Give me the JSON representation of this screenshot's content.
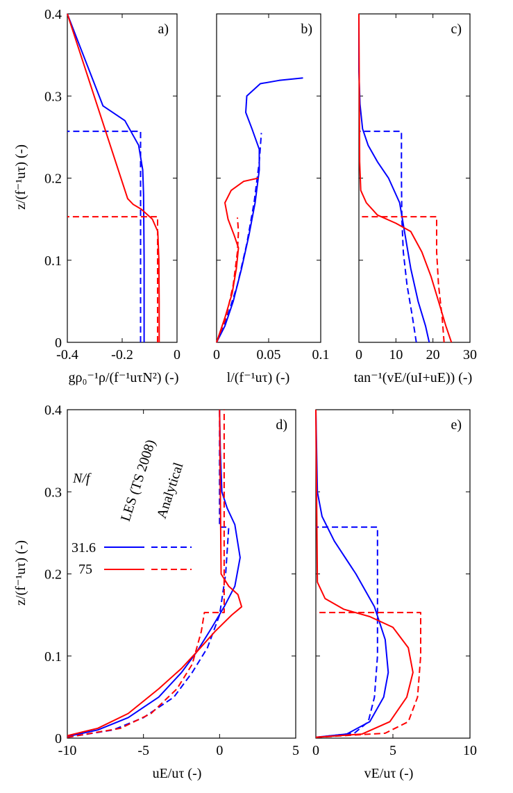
{
  "colors": {
    "les_31_6": "#0000ff",
    "les_75": "#ff0000",
    "axis": "#000000"
  },
  "y_label": "z/(f⁻¹uτ) (-)",
  "legend": {
    "header": "N/f",
    "col_les": "LES (TS 2008)",
    "col_analytical": "Analytical",
    "rows": [
      {
        "label": "31.6",
        "color": "#0000ff"
      },
      {
        "label": "75",
        "color": "#ff0000"
      }
    ]
  },
  "chart_data": [
    {
      "id": "a",
      "panel_label": "a)",
      "type": "line",
      "xlabel": "gρ₀⁻¹ρ/(f⁻¹uτN²) (-)",
      "ylabel": "z/(f⁻¹uτ) (-)",
      "xlim": [
        -0.4,
        0
      ],
      "ylim": [
        0,
        0.4
      ],
      "xticks": [
        -0.4,
        -0.2,
        0
      ],
      "xtick_labels": [
        "-0.4",
        "-0.2",
        "0"
      ],
      "yticks": [
        0,
        0.1,
        0.2,
        0.3,
        0.4
      ],
      "ytick_labels": [
        "0",
        "0.1",
        "0.2",
        "0.3",
        "0.4"
      ],
      "series": [
        {
          "name": "31.6 LES",
          "color": "#0000ff",
          "dash": false,
          "points": [
            [
              -0.12,
              0
            ],
            [
              -0.12,
              0.05
            ],
            [
              -0.12,
              0.1
            ],
            [
              -0.121,
              0.14
            ],
            [
              -0.122,
              0.18
            ],
            [
              -0.125,
              0.21
            ],
            [
              -0.14,
              0.24
            ],
            [
              -0.19,
              0.27
            ],
            [
              -0.27,
              0.288
            ],
            [
              -0.4,
              0.4
            ]
          ]
        },
        {
          "name": "31.6 Analytical",
          "color": "#0000ff",
          "dash": true,
          "points": [
            [
              -0.133,
              0
            ],
            [
              -0.133,
              0.257
            ],
            [
              -0.4,
              0.257
            ]
          ]
        },
        {
          "name": "75 LES",
          "color": "#ff0000",
          "dash": false,
          "points": [
            [
              -0.065,
              0
            ],
            [
              -0.065,
              0.05
            ],
            [
              -0.066,
              0.1
            ],
            [
              -0.07,
              0.135
            ],
            [
              -0.09,
              0.15
            ],
            [
              -0.13,
              0.162
            ],
            [
              -0.16,
              0.168
            ],
            [
              -0.18,
              0.175
            ],
            [
              -0.4,
              0.4
            ]
          ]
        },
        {
          "name": "75 Analytical",
          "color": "#ff0000",
          "dash": true,
          "points": [
            [
              -0.071,
              0
            ],
            [
              -0.071,
              0.153
            ],
            [
              -0.4,
              0.153
            ]
          ]
        }
      ]
    },
    {
      "id": "b",
      "panel_label": "b)",
      "type": "line",
      "xlabel": "l/(f⁻¹uτ) (-)",
      "ylabel": "",
      "xlim": [
        0,
        0.1
      ],
      "ylim": [
        0,
        0.4
      ],
      "xticks": [
        0,
        0.05,
        0.1
      ],
      "xtick_labels": [
        "0",
        "0.05",
        "0.1"
      ],
      "yticks": [
        0,
        0.1,
        0.2,
        0.3,
        0.4
      ],
      "ytick_labels": [],
      "series": [
        {
          "name": "31.6 LES",
          "color": "#0000ff",
          "dash": false,
          "points": [
            [
              0,
              0
            ],
            [
              0.008,
              0.02
            ],
            [
              0.016,
              0.05
            ],
            [
              0.024,
              0.09
            ],
            [
              0.031,
              0.13
            ],
            [
              0.037,
              0.17
            ],
            [
              0.041,
              0.21
            ],
            [
              0.041,
              0.235
            ],
            [
              0.034,
              0.26
            ],
            [
              0.028,
              0.28
            ],
            [
              0.029,
              0.3
            ],
            [
              0.042,
              0.315
            ],
            [
              0.06,
              0.319
            ],
            [
              0.083,
              0.322
            ]
          ]
        },
        {
          "name": "31.6 Analytical",
          "color": "#0000ff",
          "dash": true,
          "points": [
            [
              0,
              0
            ],
            [
              0.01,
              0.03
            ],
            [
              0.02,
              0.07
            ],
            [
              0.029,
              0.12
            ],
            [
              0.036,
              0.17
            ],
            [
              0.041,
              0.22
            ],
            [
              0.043,
              0.255
            ]
          ]
        },
        {
          "name": "75 LES",
          "color": "#ff0000",
          "dash": false,
          "points": [
            [
              0,
              0
            ],
            [
              0.008,
              0.03
            ],
            [
              0.015,
              0.06
            ],
            [
              0.019,
              0.09
            ],
            [
              0.021,
              0.115
            ],
            [
              0.017,
              0.13
            ],
            [
              0.011,
              0.15
            ],
            [
              0.008,
              0.17
            ],
            [
              0.014,
              0.185
            ],
            [
              0.026,
              0.196
            ],
            [
              0.04,
              0.2
            ]
          ]
        },
        {
          "name": "75 Analytical",
          "color": "#ff0000",
          "dash": true,
          "points": [
            [
              0,
              0
            ],
            [
              0.009,
              0.03
            ],
            [
              0.016,
              0.07
            ],
            [
              0.02,
              0.11
            ],
            [
              0.021,
              0.135
            ],
            [
              0.02,
              0.152
            ]
          ]
        }
      ]
    },
    {
      "id": "c",
      "panel_label": "c)",
      "type": "line",
      "xlabel": "tan⁻¹(vE/(uI+uE)) (-)",
      "ylabel": "",
      "xlim": [
        0,
        30
      ],
      "ylim": [
        0,
        0.4
      ],
      "xticks": [
        0,
        10,
        20,
        30
      ],
      "xtick_labels": [
        "0",
        "10",
        "20",
        "30"
      ],
      "yticks": [
        0,
        0.1,
        0.2,
        0.3,
        0.4
      ],
      "ytick_labels": [],
      "series": [
        {
          "name": "31.6 LES",
          "color": "#0000ff",
          "dash": false,
          "points": [
            [
              19,
              0
            ],
            [
              18,
              0.02
            ],
            [
              16,
              0.05
            ],
            [
              14,
              0.09
            ],
            [
              12.5,
              0.13
            ],
            [
              11,
              0.17
            ],
            [
              8,
              0.2
            ],
            [
              5,
              0.22
            ],
            [
              2.5,
              0.24
            ],
            [
              1,
              0.26
            ],
            [
              0.3,
              0.29
            ],
            [
              0,
              0.33
            ],
            [
              0,
              0.4
            ]
          ]
        },
        {
          "name": "31.6 Analytical",
          "color": "#0000ff",
          "dash": true,
          "points": [
            [
              15.5,
              0
            ],
            [
              14.5,
              0.03
            ],
            [
              13,
              0.07
            ],
            [
              12,
              0.11
            ],
            [
              11.6,
              0.15
            ],
            [
              11.5,
              0.2
            ],
            [
              11.5,
              0.257
            ],
            [
              0,
              0.257
            ]
          ]
        },
        {
          "name": "75 LES",
          "color": "#ff0000",
          "dash": false,
          "points": [
            [
              25,
              0
            ],
            [
              23.5,
              0.02
            ],
            [
              21.5,
              0.05
            ],
            [
              19.5,
              0.08
            ],
            [
              17,
              0.11
            ],
            [
              14,
              0.135
            ],
            [
              10,
              0.145
            ],
            [
              5,
              0.155
            ],
            [
              2,
              0.17
            ],
            [
              0.5,
              0.185
            ],
            [
              0.2,
              0.22
            ],
            [
              0,
              0.4
            ]
          ]
        },
        {
          "name": "75 Analytical",
          "color": "#ff0000",
          "dash": true,
          "points": [
            [
              23,
              0
            ],
            [
              22.5,
              0.03
            ],
            [
              21.5,
              0.07
            ],
            [
              21,
              0.11
            ],
            [
              21,
              0.153
            ],
            [
              0,
              0.153
            ]
          ]
        }
      ]
    },
    {
      "id": "d",
      "panel_label": "d)",
      "type": "line",
      "xlabel": "uE/uτ (-)",
      "ylabel": "z/(f⁻¹uτ) (-)",
      "xlim": [
        -10,
        5
      ],
      "ylim": [
        0,
        0.4
      ],
      "xticks": [
        -10,
        -5,
        0,
        5
      ],
      "xtick_labels": [
        "-10",
        "-5",
        "0",
        "5"
      ],
      "yticks": [
        0,
        0.1,
        0.2,
        0.3,
        0.4
      ],
      "ytick_labels": [
        "0",
        "0.1",
        "0.2",
        "0.3",
        "0.4"
      ],
      "series": [
        {
          "name": "31.6 LES",
          "color": "#0000ff",
          "dash": false,
          "points": [
            [
              -10,
              0.002
            ],
            [
              -8,
              0.01
            ],
            [
              -6,
              0.025
            ],
            [
              -4,
              0.05
            ],
            [
              -2.5,
              0.08
            ],
            [
              -1.5,
              0.105
            ],
            [
              -0.5,
              0.135
            ],
            [
              0.3,
              0.16
            ],
            [
              1,
              0.185
            ],
            [
              1.35,
              0.22
            ],
            [
              1,
              0.26
            ],
            [
              0.5,
              0.28
            ],
            [
              0.15,
              0.3
            ],
            [
              0.05,
              0.35
            ],
            [
              0,
              0.4
            ]
          ]
        },
        {
          "name": "31.6 Analytical",
          "color": "#0000ff",
          "dash": true,
          "points": [
            [
              -10,
              0.001
            ],
            [
              -7,
              0.01
            ],
            [
              -5,
              0.025
            ],
            [
              -3,
              0.05
            ],
            [
              -1.8,
              0.08
            ],
            [
              -0.8,
              0.11
            ],
            [
              0,
              0.15
            ],
            [
              0.4,
              0.2
            ],
            [
              0.6,
              0.257
            ],
            [
              0,
              0.257
            ],
            [
              0,
              0.4
            ]
          ]
        },
        {
          "name": "75 LES",
          "color": "#ff0000",
          "dash": false,
          "points": [
            [
              -10,
              0.003
            ],
            [
              -8,
              0.012
            ],
            [
              -6,
              0.03
            ],
            [
              -4,
              0.06
            ],
            [
              -2.5,
              0.085
            ],
            [
              -1.5,
              0.105
            ],
            [
              -0.3,
              0.13
            ],
            [
              0.8,
              0.15
            ],
            [
              1.45,
              0.16
            ],
            [
              1.2,
              0.175
            ],
            [
              0.6,
              0.185
            ],
            [
              0.1,
              0.2
            ],
            [
              0,
              0.4
            ]
          ]
        },
        {
          "name": "75 Analytical",
          "color": "#ff0000",
          "dash": true,
          "points": [
            [
              -10,
              0.001
            ],
            [
              -6.5,
              0.012
            ],
            [
              -4.5,
              0.03
            ],
            [
              -2.8,
              0.06
            ],
            [
              -1.8,
              0.09
            ],
            [
              -1.2,
              0.13
            ],
            [
              -1,
              0.153
            ],
            [
              0.3,
              0.153
            ],
            [
              0.3,
              0.4
            ]
          ]
        }
      ]
    },
    {
      "id": "e",
      "panel_label": "e)",
      "type": "line",
      "xlabel": "vE/uτ (-)",
      "ylabel": "",
      "xlim": [
        0,
        10
      ],
      "ylim": [
        0,
        0.4
      ],
      "xticks": [
        0,
        5,
        10
      ],
      "xtick_labels": [
        "0",
        "5",
        "10"
      ],
      "yticks": [
        0,
        0.1,
        0.2,
        0.3,
        0.4
      ],
      "ytick_labels": [],
      "series": [
        {
          "name": "31.6 LES",
          "color": "#0000ff",
          "dash": false,
          "points": [
            [
              0,
              0.001
            ],
            [
              2,
              0.005
            ],
            [
              3.5,
              0.02
            ],
            [
              4.4,
              0.05
            ],
            [
              4.7,
              0.08
            ],
            [
              4.5,
              0.12
            ],
            [
              3.8,
              0.16
            ],
            [
              2.6,
              0.2
            ],
            [
              1.2,
              0.24
            ],
            [
              0.4,
              0.27
            ],
            [
              0.1,
              0.3
            ],
            [
              0,
              0.4
            ]
          ]
        },
        {
          "name": "31.6 Analytical",
          "color": "#0000ff",
          "dash": true,
          "points": [
            [
              0,
              0.001
            ],
            [
              2.5,
              0.006
            ],
            [
              3.4,
              0.02
            ],
            [
              3.8,
              0.05
            ],
            [
              4,
              0.1
            ],
            [
              4,
              0.257
            ],
            [
              0,
              0.257
            ]
          ]
        },
        {
          "name": "75 LES",
          "color": "#ff0000",
          "dash": false,
          "points": [
            [
              0,
              0.001
            ],
            [
              3,
              0.005
            ],
            [
              4.8,
              0.02
            ],
            [
              5.9,
              0.05
            ],
            [
              6.3,
              0.08
            ],
            [
              6,
              0.11
            ],
            [
              5,
              0.135
            ],
            [
              3.5,
              0.148
            ],
            [
              1.8,
              0.157
            ],
            [
              0.6,
              0.17
            ],
            [
              0.1,
              0.19
            ],
            [
              0,
              0.4
            ]
          ]
        },
        {
          "name": "75 Analytical",
          "color": "#ff0000",
          "dash": true,
          "points": [
            [
              0,
              0.001
            ],
            [
              4.5,
              0.006
            ],
            [
              6,
              0.02
            ],
            [
              6.6,
              0.05
            ],
            [
              6.8,
              0.1
            ],
            [
              6.8,
              0.153
            ],
            [
              0,
              0.153
            ]
          ]
        }
      ]
    }
  ]
}
